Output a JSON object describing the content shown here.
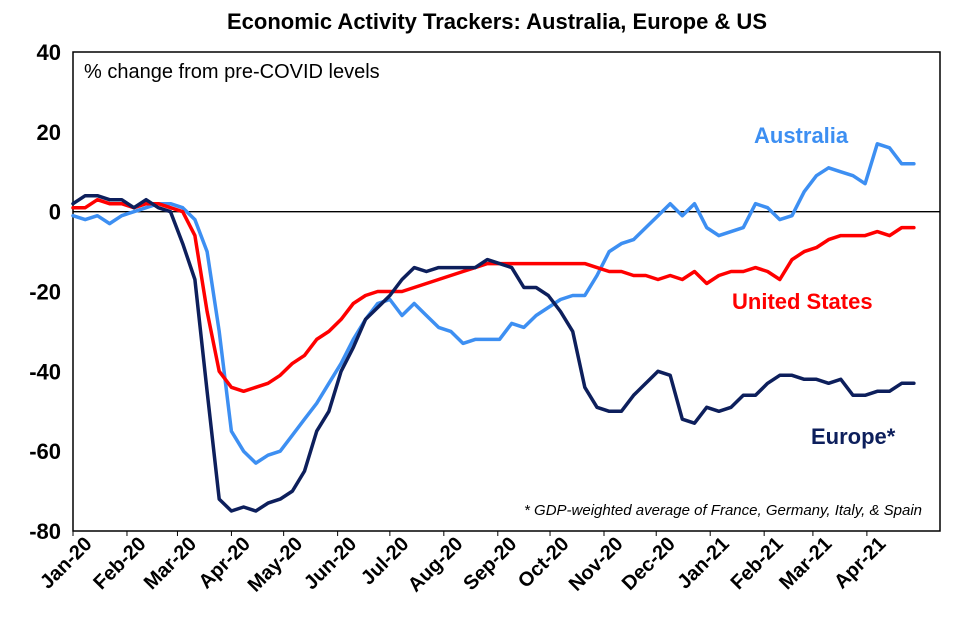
{
  "chart_data": {
    "type": "line",
    "title": "Economic Activity Trackers: Australia, Europe & US",
    "ylabel": "% change from pre-COVID levels",
    "footnote": "* GDP-weighted average of France, Germany, Italy, & Spain",
    "ylim": [
      -80,
      40
    ],
    "yticks": [
      "40",
      "20",
      "0",
      "-20",
      "-40",
      "-60",
      "-80"
    ],
    "ytick_values": [
      40,
      20,
      0,
      -20,
      -40,
      -60,
      -80
    ],
    "xticks": [
      "Jan-20",
      "Feb-20",
      "Mar-20",
      "Apr-20",
      "May-20",
      "Jun-20",
      "Jul-20",
      "Aug-20",
      "Sep-20",
      "Oct-20",
      "Nov-20",
      "Dec-20",
      "Jan-21",
      "Feb-21",
      "Mar-21",
      "Apr-21"
    ],
    "x_start": "2020-01-01",
    "x_end": "2021-05-13",
    "grid": false,
    "series": [
      {
        "name": "Australia",
        "label": "Australia",
        "color": "#3d8ff2",
        "points": [
          [
            "2020-01-01",
            -1
          ],
          [
            "2020-01-08",
            -2
          ],
          [
            "2020-01-15",
            -1
          ],
          [
            "2020-01-22",
            -3
          ],
          [
            "2020-01-29",
            -1
          ],
          [
            "2020-02-05",
            0
          ],
          [
            "2020-02-12",
            1
          ],
          [
            "2020-02-19",
            2
          ],
          [
            "2020-02-26",
            2
          ],
          [
            "2020-03-04",
            1
          ],
          [
            "2020-03-11",
            -2
          ],
          [
            "2020-03-18",
            -10
          ],
          [
            "2020-03-25",
            -30
          ],
          [
            "2020-04-01",
            -55
          ],
          [
            "2020-04-08",
            -60
          ],
          [
            "2020-04-15",
            -63
          ],
          [
            "2020-04-22",
            -61
          ],
          [
            "2020-04-29",
            -60
          ],
          [
            "2020-05-06",
            -56
          ],
          [
            "2020-05-13",
            -52
          ],
          [
            "2020-05-20",
            -48
          ],
          [
            "2020-05-27",
            -43
          ],
          [
            "2020-06-03",
            -38
          ],
          [
            "2020-06-10",
            -32
          ],
          [
            "2020-06-17",
            -27
          ],
          [
            "2020-06-24",
            -23
          ],
          [
            "2020-07-01",
            -22
          ],
          [
            "2020-07-08",
            -26
          ],
          [
            "2020-07-15",
            -23
          ],
          [
            "2020-07-22",
            -26
          ],
          [
            "2020-07-29",
            -29
          ],
          [
            "2020-08-05",
            -30
          ],
          [
            "2020-08-12",
            -33
          ],
          [
            "2020-08-19",
            -32
          ],
          [
            "2020-08-26",
            -32
          ],
          [
            "2020-09-02",
            -32
          ],
          [
            "2020-09-09",
            -28
          ],
          [
            "2020-09-16",
            -29
          ],
          [
            "2020-09-23",
            -26
          ],
          [
            "2020-09-30",
            -24
          ],
          [
            "2020-10-07",
            -22
          ],
          [
            "2020-10-14",
            -21
          ],
          [
            "2020-10-21",
            -21
          ],
          [
            "2020-10-28",
            -16
          ],
          [
            "2020-11-04",
            -10
          ],
          [
            "2020-11-11",
            -8
          ],
          [
            "2020-11-18",
            -7
          ],
          [
            "2020-11-25",
            -4
          ],
          [
            "2020-12-02",
            -1
          ],
          [
            "2020-12-09",
            2
          ],
          [
            "2020-12-16",
            -1
          ],
          [
            "2020-12-23",
            2
          ],
          [
            "2020-12-30",
            -4
          ],
          [
            "2021-01-06",
            -6
          ],
          [
            "2021-01-13",
            -5
          ],
          [
            "2021-01-20",
            -4
          ],
          [
            "2021-01-27",
            2
          ],
          [
            "2021-02-03",
            1
          ],
          [
            "2021-02-10",
            -2
          ],
          [
            "2021-02-17",
            -1
          ],
          [
            "2021-02-24",
            5
          ],
          [
            "2021-03-03",
            9
          ],
          [
            "2021-03-10",
            11
          ],
          [
            "2021-03-17",
            10
          ],
          [
            "2021-03-24",
            9
          ],
          [
            "2021-03-31",
            7
          ],
          [
            "2021-04-07",
            17
          ],
          [
            "2021-04-14",
            16
          ],
          [
            "2021-04-21",
            12
          ],
          [
            "2021-04-28",
            12
          ]
        ]
      },
      {
        "name": "United States",
        "label": "United States",
        "color": "#ff0000",
        "points": [
          [
            "2020-01-01",
            1
          ],
          [
            "2020-01-08",
            1
          ],
          [
            "2020-01-15",
            3
          ],
          [
            "2020-01-22",
            2
          ],
          [
            "2020-01-29",
            2
          ],
          [
            "2020-02-05",
            1
          ],
          [
            "2020-02-12",
            2
          ],
          [
            "2020-02-19",
            2
          ],
          [
            "2020-02-26",
            1
          ],
          [
            "2020-03-04",
            0
          ],
          [
            "2020-03-11",
            -6
          ],
          [
            "2020-03-18",
            -25
          ],
          [
            "2020-03-25",
            -40
          ],
          [
            "2020-04-01",
            -44
          ],
          [
            "2020-04-08",
            -45
          ],
          [
            "2020-04-15",
            -44
          ],
          [
            "2020-04-22",
            -43
          ],
          [
            "2020-04-29",
            -41
          ],
          [
            "2020-05-06",
            -38
          ],
          [
            "2020-05-13",
            -36
          ],
          [
            "2020-05-20",
            -32
          ],
          [
            "2020-05-27",
            -30
          ],
          [
            "2020-06-03",
            -27
          ],
          [
            "2020-06-10",
            -23
          ],
          [
            "2020-06-17",
            -21
          ],
          [
            "2020-06-24",
            -20
          ],
          [
            "2020-07-01",
            -20
          ],
          [
            "2020-07-08",
            -20
          ],
          [
            "2020-07-15",
            -19
          ],
          [
            "2020-07-22",
            -18
          ],
          [
            "2020-07-29",
            -17
          ],
          [
            "2020-08-05",
            -16
          ],
          [
            "2020-08-12",
            -15
          ],
          [
            "2020-08-19",
            -14
          ],
          [
            "2020-08-26",
            -13
          ],
          [
            "2020-09-02",
            -13
          ],
          [
            "2020-09-09",
            -13
          ],
          [
            "2020-09-16",
            -13
          ],
          [
            "2020-09-23",
            -13
          ],
          [
            "2020-09-30",
            -13
          ],
          [
            "2020-10-07",
            -13
          ],
          [
            "2020-10-14",
            -13
          ],
          [
            "2020-10-21",
            -13
          ],
          [
            "2020-10-28",
            -14
          ],
          [
            "2020-11-04",
            -15
          ],
          [
            "2020-11-11",
            -15
          ],
          [
            "2020-11-18",
            -16
          ],
          [
            "2020-11-25",
            -16
          ],
          [
            "2020-12-02",
            -17
          ],
          [
            "2020-12-09",
            -16
          ],
          [
            "2020-12-16",
            -17
          ],
          [
            "2020-12-23",
            -15
          ],
          [
            "2020-12-30",
            -18
          ],
          [
            "2021-01-06",
            -16
          ],
          [
            "2021-01-13",
            -15
          ],
          [
            "2021-01-20",
            -15
          ],
          [
            "2021-01-27",
            -14
          ],
          [
            "2021-02-03",
            -15
          ],
          [
            "2021-02-10",
            -17
          ],
          [
            "2021-02-17",
            -12
          ],
          [
            "2021-02-24",
            -10
          ],
          [
            "2021-03-03",
            -9
          ],
          [
            "2021-03-10",
            -7
          ],
          [
            "2021-03-17",
            -6
          ],
          [
            "2021-03-24",
            -6
          ],
          [
            "2021-03-31",
            -6
          ],
          [
            "2021-04-07",
            -5
          ],
          [
            "2021-04-14",
            -6
          ],
          [
            "2021-04-21",
            -4
          ],
          [
            "2021-04-28",
            -4
          ]
        ]
      },
      {
        "name": "Europe*",
        "label": "Europe*",
        "color": "#0d1f5c",
        "points": [
          [
            "2020-01-01",
            2
          ],
          [
            "2020-01-08",
            4
          ],
          [
            "2020-01-15",
            4
          ],
          [
            "2020-01-22",
            3
          ],
          [
            "2020-01-29",
            3
          ],
          [
            "2020-02-05",
            1
          ],
          [
            "2020-02-12",
            3
          ],
          [
            "2020-02-19",
            1
          ],
          [
            "2020-02-26",
            0
          ],
          [
            "2020-03-04",
            -8
          ],
          [
            "2020-03-11",
            -17
          ],
          [
            "2020-03-18",
            -45
          ],
          [
            "2020-03-25",
            -72
          ],
          [
            "2020-04-01",
            -75
          ],
          [
            "2020-04-08",
            -74
          ],
          [
            "2020-04-15",
            -75
          ],
          [
            "2020-04-22",
            -73
          ],
          [
            "2020-04-29",
            -72
          ],
          [
            "2020-05-06",
            -70
          ],
          [
            "2020-05-13",
            -65
          ],
          [
            "2020-05-20",
            -55
          ],
          [
            "2020-05-27",
            -50
          ],
          [
            "2020-06-03",
            -40
          ],
          [
            "2020-06-10",
            -34
          ],
          [
            "2020-06-17",
            -27
          ],
          [
            "2020-06-24",
            -24
          ],
          [
            "2020-07-01",
            -21
          ],
          [
            "2020-07-08",
            -17
          ],
          [
            "2020-07-15",
            -14
          ],
          [
            "2020-07-22",
            -15
          ],
          [
            "2020-07-29",
            -14
          ],
          [
            "2020-08-05",
            -14
          ],
          [
            "2020-08-12",
            -14
          ],
          [
            "2020-08-19",
            -14
          ],
          [
            "2020-08-26",
            -12
          ],
          [
            "2020-09-02",
            -13
          ],
          [
            "2020-09-09",
            -14
          ],
          [
            "2020-09-16",
            -19
          ],
          [
            "2020-09-23",
            -19
          ],
          [
            "2020-09-30",
            -21
          ],
          [
            "2020-10-07",
            -25
          ],
          [
            "2020-10-14",
            -30
          ],
          [
            "2020-10-21",
            -44
          ],
          [
            "2020-10-28",
            -49
          ],
          [
            "2020-11-04",
            -50
          ],
          [
            "2020-11-11",
            -50
          ],
          [
            "2020-11-18",
            -46
          ],
          [
            "2020-11-25",
            -43
          ],
          [
            "2020-12-02",
            -40
          ],
          [
            "2020-12-09",
            -41
          ],
          [
            "2020-12-16",
            -52
          ],
          [
            "2020-12-23",
            -53
          ],
          [
            "2020-12-30",
            -49
          ],
          [
            "2021-01-06",
            -50
          ],
          [
            "2021-01-13",
            -49
          ],
          [
            "2021-01-20",
            -46
          ],
          [
            "2021-01-27",
            -46
          ],
          [
            "2021-02-03",
            -43
          ],
          [
            "2021-02-10",
            -41
          ],
          [
            "2021-02-17",
            -41
          ],
          [
            "2021-02-24",
            -42
          ],
          [
            "2021-03-03",
            -42
          ],
          [
            "2021-03-10",
            -43
          ],
          [
            "2021-03-17",
            -42
          ],
          [
            "2021-03-24",
            -46
          ],
          [
            "2021-03-31",
            -46
          ],
          [
            "2021-04-07",
            -45
          ],
          [
            "2021-04-14",
            -45
          ],
          [
            "2021-04-21",
            -43
          ],
          [
            "2021-04-28",
            -43
          ]
        ]
      }
    ]
  }
}
